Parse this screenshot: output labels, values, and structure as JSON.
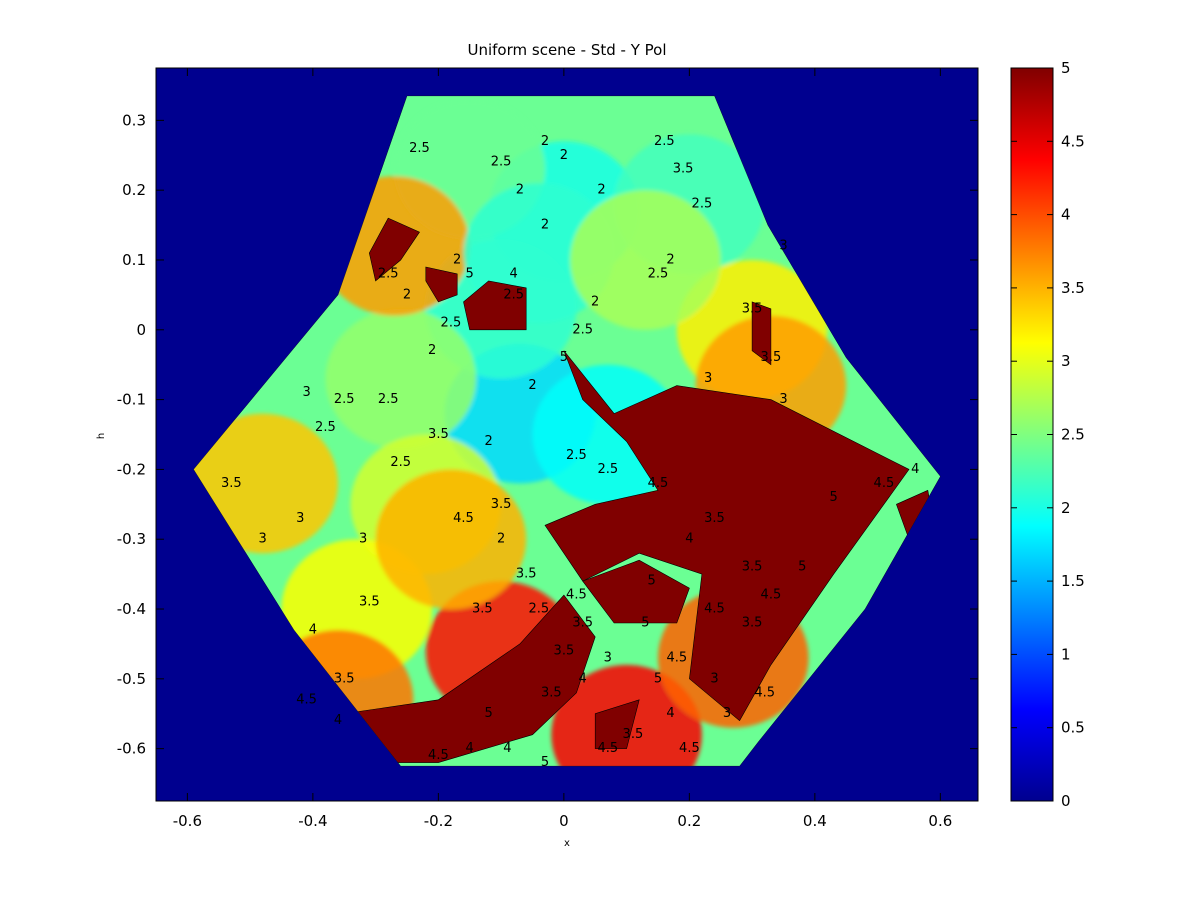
{
  "chart_data": {
    "type": "heatmap",
    "title": "Uniform scene - Std - Y Pol",
    "xlabel": "x",
    "ylabel": "h",
    "xlim": [
      -0.65,
      0.66
    ],
    "ylim": [
      -0.675,
      0.375
    ],
    "x_ticks": [
      -0.6,
      -0.4,
      -0.2,
      0,
      0.2,
      0.4,
      0.6
    ],
    "x_tick_labels": [
      "-0.6",
      "-0.4",
      "-0.2",
      "0",
      "0.2",
      "0.4",
      "0.6"
    ],
    "y_ticks": [
      0.3,
      0.2,
      0.1,
      0,
      -0.1,
      -0.2,
      -0.3,
      -0.4,
      -0.5,
      -0.6
    ],
    "y_tick_labels": [
      "0.3",
      "0.2",
      "0.1",
      "0",
      "-0.1",
      "-0.2",
      "-0.3",
      "-0.4",
      "-0.5",
      "-0.6"
    ],
    "colorbar": {
      "colormap": "jet",
      "range": [
        0,
        5
      ],
      "ticks": [
        0,
        0.5,
        1,
        1.5,
        2,
        2.5,
        3,
        3.5,
        4,
        4.5,
        5
      ],
      "tick_labels": [
        "0",
        "0.5",
        "1",
        "1.5",
        "2",
        "2.5",
        "3",
        "3.5",
        "4",
        "4.5",
        "5"
      ]
    },
    "background_value": 0,
    "region_outline": [
      [
        -0.25,
        0.335
      ],
      [
        0.24,
        0.335
      ],
      [
        0.325,
        0.15
      ],
      [
        0.45,
        -0.04
      ],
      [
        0.6,
        -0.21
      ],
      [
        0.48,
        -0.4
      ],
      [
        0.31,
        -0.59
      ],
      [
        0.28,
        -0.625
      ],
      [
        -0.26,
        -0.625
      ],
      [
        -0.43,
        -0.43
      ],
      [
        -0.59,
        -0.2
      ],
      [
        -0.36,
        0.05
      ]
    ],
    "field_blobs": [
      {
        "x": 0.0,
        "y": 0.17,
        "value": 2.0
      },
      {
        "x": -0.15,
        "y": 0.23,
        "value": 2.4
      },
      {
        "x": 0.2,
        "y": 0.18,
        "value": 2.2
      },
      {
        "x": -0.07,
        "y": -0.12,
        "value": 1.7
      },
      {
        "x": -0.1,
        "y": 0.03,
        "value": 2.1
      },
      {
        "x": 0.07,
        "y": -0.15,
        "value": 1.9
      },
      {
        "x": -0.26,
        "y": -0.07,
        "value": 2.6
      },
      {
        "x": -0.22,
        "y": -0.25,
        "value": 2.9
      },
      {
        "x": -0.48,
        "y": -0.22,
        "value": 3.4
      },
      {
        "x": -0.33,
        "y": -0.4,
        "value": 3.1
      },
      {
        "x": -0.36,
        "y": -0.53,
        "value": 3.8
      },
      {
        "x": -0.1,
        "y": -0.46,
        "value": 4.3
      },
      {
        "x": 0.1,
        "y": -0.58,
        "value": 4.4
      },
      {
        "x": 0.27,
        "y": -0.47,
        "value": 3.9
      },
      {
        "x": 0.3,
        "y": 0.0,
        "value": 3.2
      },
      {
        "x": 0.33,
        "y": -0.08,
        "value": 3.6
      },
      {
        "x": -0.27,
        "y": 0.12,
        "value": 3.6
      },
      {
        "x": -0.04,
        "y": 0.11,
        "value": 2.1
      },
      {
        "x": 0.13,
        "y": 0.1,
        "value": 2.7
      },
      {
        "x": -0.18,
        "y": -0.3,
        "value": 3.5
      }
    ],
    "saturated_regions": [
      {
        "value": 5,
        "polygon": [
          [
            0.0,
            -0.03
          ],
          [
            0.08,
            -0.12
          ],
          [
            0.18,
            -0.08
          ],
          [
            0.33,
            -0.1
          ],
          [
            0.55,
            -0.2
          ],
          [
            0.43,
            -0.35
          ],
          [
            0.33,
            -0.48
          ],
          [
            0.28,
            -0.56
          ],
          [
            0.2,
            -0.5
          ],
          [
            0.22,
            -0.35
          ],
          [
            0.12,
            -0.32
          ],
          [
            0.03,
            -0.36
          ],
          [
            -0.03,
            -0.28
          ],
          [
            0.05,
            -0.25
          ],
          [
            0.15,
            -0.23
          ],
          [
            0.1,
            -0.16
          ],
          [
            0.03,
            -0.1
          ]
        ]
      },
      {
        "value": 5,
        "polygon": [
          [
            -0.35,
            -0.55
          ],
          [
            -0.2,
            -0.53
          ],
          [
            -0.07,
            -0.45
          ],
          [
            0.0,
            -0.38
          ],
          [
            0.05,
            -0.44
          ],
          [
            0.02,
            -0.52
          ],
          [
            -0.05,
            -0.58
          ],
          [
            -0.2,
            -0.62
          ],
          [
            -0.3,
            -0.62
          ]
        ]
      },
      {
        "value": 5,
        "polygon": [
          [
            0.03,
            -0.36
          ],
          [
            0.12,
            -0.33
          ],
          [
            0.2,
            -0.37
          ],
          [
            0.18,
            -0.42
          ],
          [
            0.08,
            -0.42
          ]
        ]
      },
      {
        "value": 5,
        "polygon": [
          [
            -0.15,
            0.0
          ],
          [
            -0.06,
            0.0
          ],
          [
            -0.06,
            0.06
          ],
          [
            -0.12,
            0.07
          ],
          [
            -0.16,
            0.04
          ]
        ]
      },
      {
        "value": 5,
        "polygon": [
          [
            -0.3,
            0.07
          ],
          [
            -0.26,
            0.1
          ],
          [
            -0.23,
            0.14
          ],
          [
            -0.28,
            0.16
          ],
          [
            -0.31,
            0.11
          ]
        ]
      },
      {
        "value": 5,
        "polygon": [
          [
            -0.22,
            0.09
          ],
          [
            -0.17,
            0.08
          ],
          [
            -0.17,
            0.05
          ],
          [
            -0.2,
            0.04
          ],
          [
            -0.22,
            0.07
          ]
        ]
      },
      {
        "value": 5,
        "polygon": [
          [
            0.3,
            0.04
          ],
          [
            0.33,
            0.03
          ],
          [
            0.33,
            -0.05
          ],
          [
            0.3,
            -0.03
          ]
        ]
      },
      {
        "value": 5,
        "polygon": [
          [
            0.53,
            -0.25
          ],
          [
            0.58,
            -0.23
          ],
          [
            0.59,
            -0.28
          ],
          [
            0.55,
            -0.3
          ]
        ]
      },
      {
        "value": 5,
        "polygon": [
          [
            0.05,
            -0.55
          ],
          [
            0.12,
            -0.53
          ],
          [
            0.1,
            -0.6
          ],
          [
            0.05,
            -0.6
          ]
        ]
      }
    ],
    "contour_labels": [
      {
        "x": 0.16,
        "y": 0.27,
        "text": "2.5"
      },
      {
        "x": -0.23,
        "y": 0.26,
        "text": "2.5"
      },
      {
        "x": -0.1,
        "y": 0.24,
        "text": "2.5"
      },
      {
        "x": -0.03,
        "y": 0.27,
        "text": "2"
      },
      {
        "x": 0.0,
        "y": 0.25,
        "text": "2"
      },
      {
        "x": -0.07,
        "y": 0.2,
        "text": "2"
      },
      {
        "x": -0.03,
        "y": 0.15,
        "text": "2"
      },
      {
        "x": 0.06,
        "y": 0.2,
        "text": "2"
      },
      {
        "x": -0.17,
        "y": 0.1,
        "text": "2"
      },
      {
        "x": 0.17,
        "y": 0.1,
        "text": "2"
      },
      {
        "x": 0.15,
        "y": 0.08,
        "text": "2.5"
      },
      {
        "x": -0.28,
        "y": 0.08,
        "text": "2.5"
      },
      {
        "x": -0.08,
        "y": 0.05,
        "text": "2.5"
      },
      {
        "x": 0.05,
        "y": 0.04,
        "text": "2"
      },
      {
        "x": -0.21,
        "y": -0.03,
        "text": "2"
      },
      {
        "x": -0.18,
        "y": 0.01,
        "text": "2.5"
      },
      {
        "x": -0.25,
        "y": 0.05,
        "text": "2"
      },
      {
        "x": 0.03,
        "y": 0.0,
        "text": "2.5"
      },
      {
        "x": -0.35,
        "y": -0.1,
        "text": "2.5"
      },
      {
        "x": -0.28,
        "y": -0.1,
        "text": "2.5"
      },
      {
        "x": -0.38,
        "y": -0.14,
        "text": "2.5"
      },
      {
        "x": -0.41,
        "y": -0.09,
        "text": "3"
      },
      {
        "x": -0.2,
        "y": -0.15,
        "text": "3.5"
      },
      {
        "x": -0.26,
        "y": -0.19,
        "text": "2.5"
      },
      {
        "x": -0.12,
        "y": -0.16,
        "text": "2"
      },
      {
        "x": -0.05,
        "y": -0.08,
        "text": "2"
      },
      {
        "x": 0.02,
        "y": -0.18,
        "text": "2.5"
      },
      {
        "x": 0.07,
        "y": -0.2,
        "text": "2.5"
      },
      {
        "x": -0.1,
        "y": -0.25,
        "text": "3.5"
      },
      {
        "x": -0.1,
        "y": -0.3,
        "text": "2"
      },
      {
        "x": -0.53,
        "y": -0.22,
        "text": "3.5"
      },
      {
        "x": -0.42,
        "y": -0.27,
        "text": "3"
      },
      {
        "x": -0.48,
        "y": -0.3,
        "text": "3"
      },
      {
        "x": -0.32,
        "y": -0.3,
        "text": "3"
      },
      {
        "x": -0.16,
        "y": -0.27,
        "text": "4.5"
      },
      {
        "x": -0.31,
        "y": -0.39,
        "text": "3.5"
      },
      {
        "x": -0.4,
        "y": -0.43,
        "text": "4"
      },
      {
        "x": -0.13,
        "y": -0.4,
        "text": "3.5"
      },
      {
        "x": -0.06,
        "y": -0.35,
        "text": "3.5"
      },
      {
        "x": -0.04,
        "y": -0.4,
        "text": "2.5"
      },
      {
        "x": 0.02,
        "y": -0.38,
        "text": "4.5"
      },
      {
        "x": 0.0,
        "y": -0.46,
        "text": "3.5"
      },
      {
        "x": 0.03,
        "y": -0.42,
        "text": "3.5"
      },
      {
        "x": -0.35,
        "y": -0.5,
        "text": "3.5"
      },
      {
        "x": -0.41,
        "y": -0.53,
        "text": "4.5"
      },
      {
        "x": -0.36,
        "y": -0.56,
        "text": "4"
      },
      {
        "x": -0.12,
        "y": -0.55,
        "text": "5"
      },
      {
        "x": -0.02,
        "y": -0.52,
        "text": "3.5"
      },
      {
        "x": 0.03,
        "y": -0.5,
        "text": "4"
      },
      {
        "x": 0.07,
        "y": -0.47,
        "text": "3"
      },
      {
        "x": 0.15,
        "y": -0.5,
        "text": "5"
      },
      {
        "x": 0.24,
        "y": -0.5,
        "text": "3"
      },
      {
        "x": 0.11,
        "y": -0.58,
        "text": "3.5"
      },
      {
        "x": 0.17,
        "y": -0.55,
        "text": "4"
      },
      {
        "x": -0.09,
        "y": -0.6,
        "text": "4"
      },
      {
        "x": -0.15,
        "y": -0.6,
        "text": "4"
      },
      {
        "x": -0.2,
        "y": -0.61,
        "text": "4.5"
      },
      {
        "x": -0.03,
        "y": -0.62,
        "text": "5"
      },
      {
        "x": 0.07,
        "y": -0.6,
        "text": "4.5"
      },
      {
        "x": 0.2,
        "y": -0.6,
        "text": "4.5"
      },
      {
        "x": 0.24,
        "y": -0.27,
        "text": "3.5"
      },
      {
        "x": 0.2,
        "y": -0.3,
        "text": "4"
      },
      {
        "x": 0.24,
        "y": -0.4,
        "text": "4.5"
      },
      {
        "x": 0.3,
        "y": -0.34,
        "text": "3.5"
      },
      {
        "x": 0.33,
        "y": -0.38,
        "text": "4.5"
      },
      {
        "x": 0.38,
        "y": -0.34,
        "text": "5"
      },
      {
        "x": 0.3,
        "y": -0.42,
        "text": "3.5"
      },
      {
        "x": 0.32,
        "y": -0.52,
        "text": "4.5"
      },
      {
        "x": 0.26,
        "y": -0.55,
        "text": "3"
      },
      {
        "x": 0.18,
        "y": -0.47,
        "text": "4.5"
      },
      {
        "x": 0.14,
        "y": -0.36,
        "text": "5"
      },
      {
        "x": 0.43,
        "y": -0.24,
        "text": "5"
      },
      {
        "x": 0.51,
        "y": -0.22,
        "text": "4.5"
      },
      {
        "x": 0.56,
        "y": -0.2,
        "text": "4"
      },
      {
        "x": 0.35,
        "y": 0.12,
        "text": "3"
      },
      {
        "x": 0.3,
        "y": 0.03,
        "text": "3.5"
      },
      {
        "x": 0.33,
        "y": -0.04,
        "text": "3.5"
      },
      {
        "x": 0.35,
        "y": -0.1,
        "text": "3"
      },
      {
        "x": 0.23,
        "y": -0.07,
        "text": "3"
      },
      {
        "x": 0.19,
        "y": 0.23,
        "text": "3.5"
      },
      {
        "x": 0.22,
        "y": 0.18,
        "text": "2.5"
      },
      {
        "x": 0.0,
        "y": -0.04,
        "text": "5"
      },
      {
        "x": 0.15,
        "y": -0.22,
        "text": "4.5"
      },
      {
        "x": 0.13,
        "y": -0.42,
        "text": "5"
      },
      {
        "x": -0.15,
        "y": 0.08,
        "text": "5"
      },
      {
        "x": -0.08,
        "y": 0.08,
        "text": "4"
      }
    ]
  }
}
